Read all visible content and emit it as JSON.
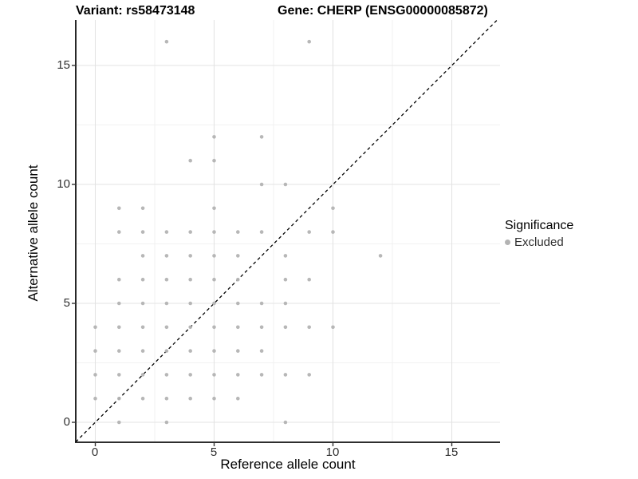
{
  "header": {
    "title_left": "Variant: rs58473148",
    "title_right": "Gene: CHERP (ENSG00000085872)"
  },
  "legend": {
    "title": "Significance",
    "items": [
      {
        "label": "Excluded",
        "color": "#b3b3b3"
      }
    ]
  },
  "chart_data": {
    "type": "scatter",
    "title_left": "Variant: rs58473148",
    "title_right": "Gene: CHERP (ENSG00000085872)",
    "xlabel": "Reference allele count",
    "ylabel": "Alternative allele count",
    "x_ticks": [
      0,
      5,
      10,
      15
    ],
    "y_ticks": [
      0,
      5,
      10,
      15
    ],
    "xlim": [
      -0.82,
      16.9
    ],
    "ylim": [
      -0.82,
      16.9
    ],
    "grid": {
      "major": [
        0,
        5,
        10,
        15
      ],
      "minor": [
        2.5,
        7.5,
        12.5
      ],
      "major_color": "#e3e3e3",
      "minor_color": "#f1f1f1"
    },
    "reference_line": {
      "type": "identity",
      "equation": "y = x",
      "style": "dashed",
      "color": "#000000"
    },
    "legend": {
      "title": "Significance",
      "position": "right"
    },
    "series": [
      {
        "name": "Excluded",
        "color": "#b3b3b3",
        "points": [
          [
            1,
            0
          ],
          [
            3,
            0
          ],
          [
            8,
            0
          ],
          [
            0,
            1
          ],
          [
            1,
            1
          ],
          [
            2,
            1
          ],
          [
            3,
            1
          ],
          [
            4,
            1
          ],
          [
            5,
            1
          ],
          [
            6,
            1
          ],
          [
            0,
            2
          ],
          [
            1,
            2
          ],
          [
            2,
            2
          ],
          [
            3,
            2
          ],
          [
            4,
            2
          ],
          [
            5,
            2
          ],
          [
            6,
            2
          ],
          [
            7,
            2
          ],
          [
            8,
            2
          ],
          [
            9,
            2
          ],
          [
            0,
            3
          ],
          [
            1,
            3
          ],
          [
            2,
            3
          ],
          [
            3,
            3
          ],
          [
            4,
            3
          ],
          [
            5,
            3
          ],
          [
            6,
            3
          ],
          [
            7,
            3
          ],
          [
            0,
            4
          ],
          [
            1,
            4
          ],
          [
            2,
            4
          ],
          [
            3,
            4
          ],
          [
            4,
            4
          ],
          [
            5,
            4
          ],
          [
            6,
            4
          ],
          [
            7,
            4
          ],
          [
            8,
            4
          ],
          [
            9,
            4
          ],
          [
            10,
            4
          ],
          [
            1,
            5
          ],
          [
            2,
            5
          ],
          [
            3,
            5
          ],
          [
            4,
            5
          ],
          [
            5,
            5
          ],
          [
            6,
            5
          ],
          [
            7,
            5
          ],
          [
            8,
            5
          ],
          [
            1,
            6
          ],
          [
            2,
            6
          ],
          [
            3,
            6
          ],
          [
            4,
            6
          ],
          [
            5,
            6
          ],
          [
            6,
            6
          ],
          [
            8,
            6
          ],
          [
            9,
            6
          ],
          [
            2,
            7
          ],
          [
            3,
            7
          ],
          [
            4,
            7
          ],
          [
            5,
            7
          ],
          [
            6,
            7
          ],
          [
            8,
            7
          ],
          [
            12,
            7
          ],
          [
            1,
            8
          ],
          [
            2,
            8
          ],
          [
            3,
            8
          ],
          [
            4,
            8
          ],
          [
            5,
            8
          ],
          [
            6,
            8
          ],
          [
            7,
            8
          ],
          [
            9,
            8
          ],
          [
            10,
            8
          ],
          [
            1,
            9
          ],
          [
            2,
            9
          ],
          [
            5,
            9
          ],
          [
            10,
            9
          ],
          [
            7,
            10
          ],
          [
            8,
            10
          ],
          [
            4,
            11
          ],
          [
            5,
            11
          ],
          [
            5,
            12
          ],
          [
            7,
            12
          ],
          [
            3,
            16
          ],
          [
            9,
            16
          ]
        ]
      }
    ]
  }
}
